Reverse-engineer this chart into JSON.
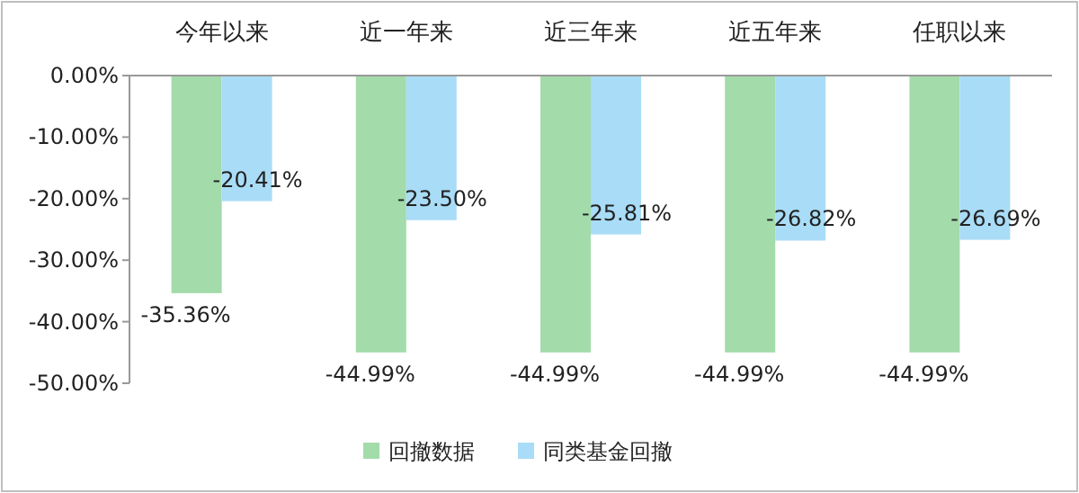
{
  "chart_data": {
    "type": "bar",
    "categories": [
      "今年以来",
      "近一年来",
      "近三年来",
      "近五年来",
      "任职以来"
    ],
    "series": [
      {
        "name": "回撤数据",
        "color": "#a3dbab",
        "values": [
          -35.36,
          -44.99,
          -44.99,
          -44.99,
          -44.99
        ],
        "value_labels": [
          "-35.36%",
          "-44.99%",
          "-44.99%",
          "-44.99%",
          "-44.99%"
        ]
      },
      {
        "name": "同类基金回撤",
        "color": "#a9dcf6",
        "values": [
          -20.41,
          -23.5,
          -25.81,
          -26.82,
          -26.69
        ],
        "value_labels": [
          "-20.41%",
          "-23.50%",
          "-25.81%",
          "-26.82%",
          "-26.69%"
        ]
      }
    ],
    "ylim": [
      -50,
      0
    ],
    "yticks": [
      {
        "value": 0,
        "label": "0.00%"
      },
      {
        "value": -10,
        "label": "-10.00%"
      },
      {
        "value": -20,
        "label": "-20.00%"
      },
      {
        "value": -30,
        "label": "-30.00%"
      },
      {
        "value": -40,
        "label": "-40.00%"
      },
      {
        "value": -50,
        "label": "-50.00%"
      }
    ],
    "legend": "bottom"
  }
}
